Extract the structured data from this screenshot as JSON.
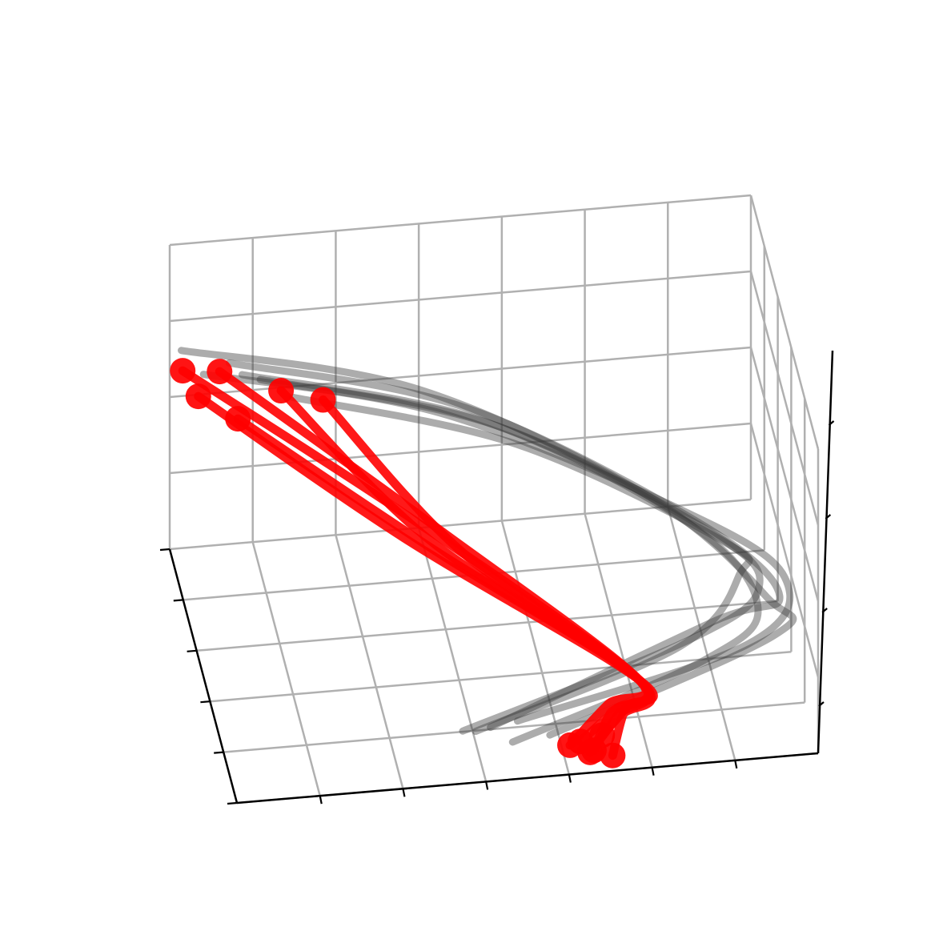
{
  "chart_data": {
    "type": "line3d",
    "title": "",
    "xlabel": "",
    "ylabel": "",
    "zlabel": "",
    "tick_labels_visible": false,
    "grid": true,
    "colors": {
      "gray_series": "#3a3a3a",
      "red_series": "#ff0000",
      "grid": "#b0b0b0",
      "axis": "#000000"
    },
    "common_point": [
      0.72,
      0.25,
      0.32
    ],
    "series": [
      {
        "group": "gray",
        "values": [
          [
            0.4,
            0.1,
            0.35
          ],
          [
            0.8,
            0.2,
            0.95
          ],
          [
            0.95,
            0.45,
            0.7
          ],
          [
            0.9,
            0.7,
            0.62
          ],
          [
            0.55,
            0.9,
            1.6
          ],
          [
            0.15,
            0.95,
            2.3
          ]
        ]
      },
      {
        "group": "gray",
        "values": [
          [
            0.45,
            0.12,
            0.3
          ],
          [
            0.85,
            0.25,
            1.0
          ],
          [
            0.98,
            0.4,
            0.75
          ],
          [
            0.88,
            0.72,
            0.7
          ],
          [
            0.5,
            0.92,
            1.8
          ],
          [
            0.1,
            0.98,
            2.45
          ]
        ]
      },
      {
        "group": "gray",
        "values": [
          [
            0.5,
            0.15,
            0.25
          ],
          [
            0.9,
            0.18,
            0.9
          ],
          [
            1.0,
            0.5,
            0.65
          ],
          [
            0.85,
            0.75,
            0.8
          ],
          [
            0.45,
            0.88,
            1.9
          ],
          [
            0.05,
            0.93,
            2.5
          ]
        ]
      },
      {
        "group": "gray",
        "values": [
          [
            0.42,
            0.08,
            0.4
          ],
          [
            0.78,
            0.15,
            1.05
          ],
          [
            0.92,
            0.48,
            0.8
          ],
          [
            0.92,
            0.68,
            0.55
          ],
          [
            0.58,
            0.85,
            1.5
          ],
          [
            0.2,
            0.9,
            2.2
          ]
        ]
      },
      {
        "group": "gray",
        "values": [
          [
            0.55,
            0.1,
            0.2
          ],
          [
            0.95,
            0.22,
            0.85
          ],
          [
            0.96,
            0.42,
            0.68
          ],
          [
            0.8,
            0.78,
            0.9
          ],
          [
            0.42,
            0.95,
            2.0
          ],
          [
            0.02,
            1.0,
            2.6
          ]
        ]
      },
      {
        "group": "gray",
        "values": [
          [
            0.48,
            0.05,
            0.32
          ],
          [
            0.82,
            0.12,
            0.95
          ],
          [
            0.94,
            0.38,
            0.72
          ],
          [
            0.86,
            0.74,
            0.66
          ],
          [
            0.52,
            0.9,
            1.7
          ],
          [
            0.12,
            0.96,
            2.35
          ]
        ]
      },
      {
        "group": "red",
        "values": [
          [
            0.62,
            0.05,
            0.12
          ],
          [
            0.66,
            0.15,
            0.25
          ],
          [
            0.72,
            0.25,
            0.32
          ],
          [
            0.4,
            0.6,
            1.2
          ],
          [
            0.18,
            0.9,
            2.3
          ]
        ]
      },
      {
        "group": "red",
        "values": [
          [
            0.6,
            0.08,
            0.15
          ],
          [
            0.67,
            0.16,
            0.26
          ],
          [
            0.72,
            0.25,
            0.32
          ],
          [
            0.42,
            0.62,
            1.25
          ],
          [
            0.08,
            0.95,
            2.45
          ]
        ]
      },
      {
        "group": "red",
        "values": [
          [
            0.65,
            0.03,
            0.1
          ],
          [
            0.68,
            0.14,
            0.24
          ],
          [
            0.72,
            0.25,
            0.32
          ],
          [
            0.38,
            0.65,
            1.3
          ],
          [
            0.02,
            0.98,
            2.4
          ]
        ]
      },
      {
        "group": "red",
        "values": [
          [
            0.58,
            0.06,
            0.18
          ],
          [
            0.66,
            0.18,
            0.27
          ],
          [
            0.72,
            0.25,
            0.32
          ],
          [
            0.45,
            0.58,
            1.1
          ],
          [
            0.25,
            0.88,
            2.2
          ]
        ]
      },
      {
        "group": "red",
        "values": [
          [
            0.64,
            0.1,
            0.14
          ],
          [
            0.69,
            0.17,
            0.25
          ],
          [
            0.72,
            0.25,
            0.32
          ],
          [
            0.36,
            0.63,
            1.15
          ],
          [
            0.04,
            0.92,
            2.25
          ]
        ]
      },
      {
        "group": "red",
        "values": [
          [
            0.61,
            0.02,
            0.2
          ],
          [
            0.67,
            0.13,
            0.28
          ],
          [
            0.72,
            0.25,
            0.32
          ],
          [
            0.41,
            0.6,
            1.05
          ],
          [
            0.1,
            0.85,
            2.15
          ]
        ]
      }
    ]
  }
}
